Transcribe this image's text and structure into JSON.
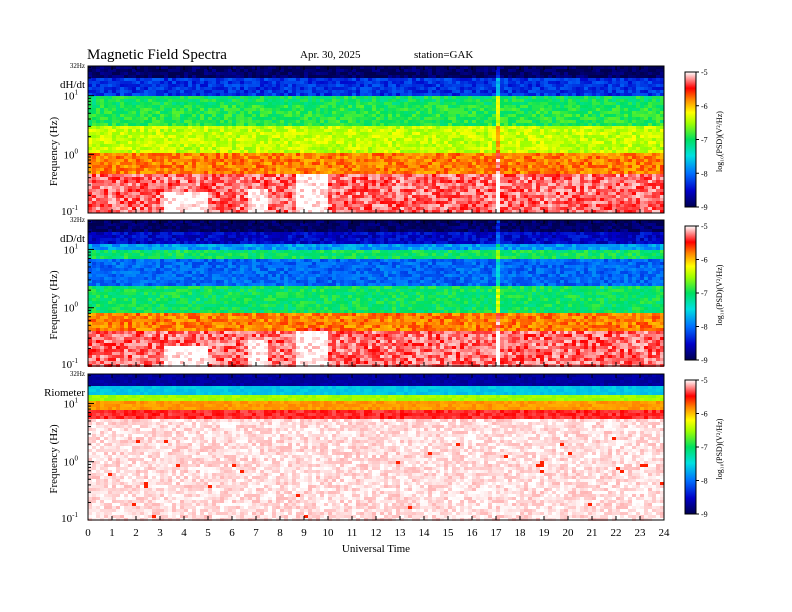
{
  "header": {
    "title": "Magnetic  Field  Spectra",
    "date": "Apr. 30, 2025",
    "station": "station=GAK"
  },
  "chart_data": [
    {
      "type": "heatmap",
      "panel_label": "dH/dt",
      "ylabel": "Frequency  (Hz)",
      "yscale": "log",
      "ylim": [
        0.1,
        32
      ],
      "ytick_labels": [
        "32Hz",
        "10",
        "0",
        "-1"
      ],
      "xlim": [
        0,
        24
      ],
      "colorbar": {
        "label": "log₁₀(PSD)(V²/Hz)",
        "range": [
          -9,
          -5
        ],
        "ticks": [
          "-5",
          "-6",
          "-7",
          "-8",
          "-9"
        ]
      }
    },
    {
      "type": "heatmap",
      "panel_label": "dD/dt",
      "ylabel": "Frequency  (Hz)",
      "yscale": "log",
      "ylim": [
        0.1,
        32
      ],
      "ytick_labels": [
        "32Hz",
        "10",
        "0",
        "-1"
      ],
      "xlim": [
        0,
        24
      ],
      "colorbar": {
        "label": "log₁₀(PSD)(V²/Hz)",
        "range": [
          -9,
          -5
        ],
        "ticks": [
          "-5",
          "-6",
          "-7",
          "-8",
          "-9"
        ]
      }
    },
    {
      "type": "heatmap",
      "panel_label": "Riometer",
      "ylabel": "Frequency  (Hz)",
      "yscale": "log",
      "ylim": [
        0.1,
        32
      ],
      "ytick_labels": [
        "32Hz",
        "10",
        "0",
        "-1"
      ],
      "xlim": [
        0,
        24
      ],
      "xlabel": "Universal  Time",
      "xtick_labels": [
        "0",
        "1",
        "2",
        "3",
        "4",
        "5",
        "6",
        "7",
        "8",
        "9",
        "10",
        "11",
        "12",
        "13",
        "14",
        "15",
        "16",
        "17",
        "18",
        "19",
        "20",
        "21",
        "22",
        "23",
        "24"
      ],
      "colorbar": {
        "label": "log₁₀(PSD)(V²/Hz)",
        "range": [
          -9,
          -5
        ],
        "ticks": [
          "-5",
          "-6",
          "-7",
          "-8",
          "-9"
        ]
      }
    }
  ]
}
